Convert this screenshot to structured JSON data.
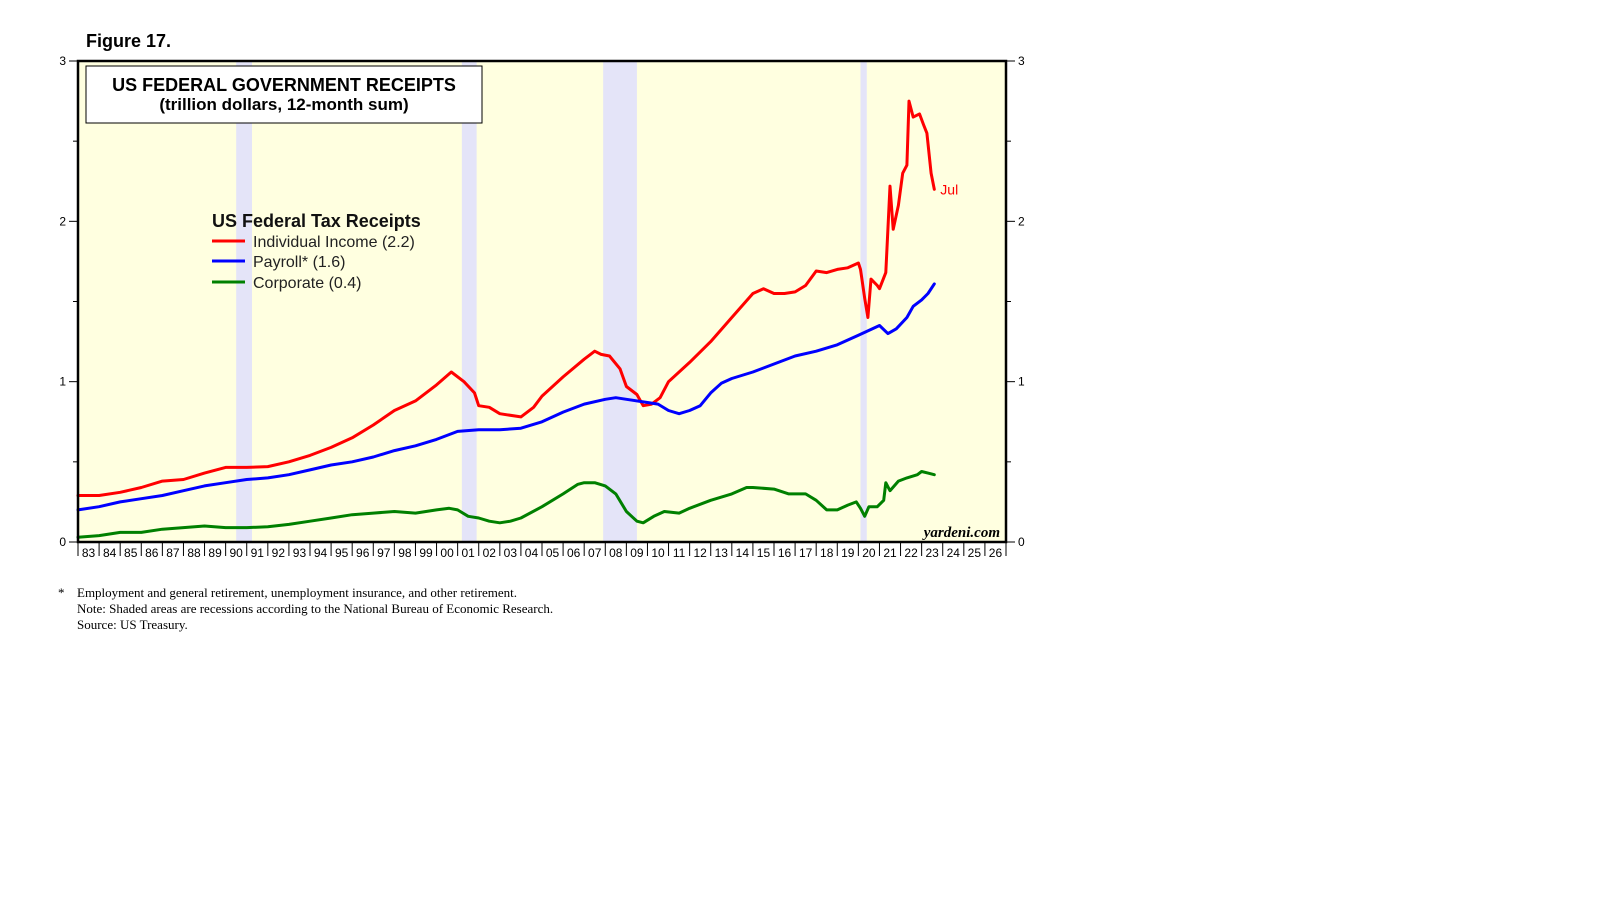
{
  "figure_label": "Figure 17.",
  "watermark": "yardeni.com",
  "notes": {
    "asterisk": "*",
    "line1": "Employment and general retirement, unemployment insurance, and other retirement.",
    "line2": "Note: Shaded areas are recessions according to the National Bureau of Economic Research.",
    "line3": "Source: US Treasury."
  },
  "colors": {
    "plot_bg": "#ffffe0",
    "recession": "#e4e4f8",
    "individual": "#ff0000",
    "payroll": "#0000ff",
    "corporate": "#008000"
  },
  "chart_data": {
    "type": "line",
    "title": "US FEDERAL GOVERNMENT RECEIPTS",
    "subtitle": "(trillion dollars, 12-month sum)",
    "legend_title": "US Federal Tax Receipts",
    "end_label": "Jul",
    "xlim": [
      1983,
      2027
    ],
    "ylim": [
      0,
      3
    ],
    "y_ticks": [
      "0",
      "1",
      "2",
      "3"
    ],
    "x_tick_labels": [
      "83",
      "84",
      "85",
      "86",
      "87",
      "88",
      "89",
      "90",
      "91",
      "92",
      "93",
      "94",
      "95",
      "96",
      "97",
      "98",
      "99",
      "00",
      "01",
      "02",
      "03",
      "04",
      "05",
      "06",
      "07",
      "08",
      "09",
      "10",
      "11",
      "12",
      "13",
      "14",
      "15",
      "16",
      "17",
      "18",
      "19",
      "20",
      "21",
      "22",
      "23",
      "24",
      "25",
      "26"
    ],
    "recessions": [
      [
        1990.5,
        1991.25
      ],
      [
        2001.2,
        2001.9
      ],
      [
        2007.9,
        2009.5
      ],
      [
        2020.1,
        2020.4
      ]
    ],
    "series": [
      {
        "name": "Individual Income (2.2)",
        "color_key": "individual",
        "points": [
          [
            1983,
            0.29
          ],
          [
            1984,
            0.29
          ],
          [
            1985,
            0.31
          ],
          [
            1986,
            0.34
          ],
          [
            1987,
            0.38
          ],
          [
            1988,
            0.39
          ],
          [
            1989,
            0.43
          ],
          [
            1990,
            0.465
          ],
          [
            1991,
            0.465
          ],
          [
            1992,
            0.47
          ],
          [
            1993,
            0.5
          ],
          [
            1994,
            0.54
          ],
          [
            1995,
            0.59
          ],
          [
            1996,
            0.65
          ],
          [
            1997,
            0.73
          ],
          [
            1998,
            0.82
          ],
          [
            1999,
            0.88
          ],
          [
            2000,
            0.98
          ],
          [
            2000.7,
            1.06
          ],
          [
            2001.3,
            1.0
          ],
          [
            2001.8,
            0.93
          ],
          [
            2002,
            0.85
          ],
          [
            2002.5,
            0.84
          ],
          [
            2003,
            0.8
          ],
          [
            2004,
            0.78
          ],
          [
            2004.6,
            0.84
          ],
          [
            2005,
            0.91
          ],
          [
            2006,
            1.03
          ],
          [
            2007,
            1.14
          ],
          [
            2007.5,
            1.19
          ],
          [
            2007.8,
            1.17
          ],
          [
            2008.2,
            1.16
          ],
          [
            2008.7,
            1.08
          ],
          [
            2009,
            0.97
          ],
          [
            2009.5,
            0.92
          ],
          [
            2009.8,
            0.85
          ],
          [
            2010.2,
            0.86
          ],
          [
            2010.6,
            0.9
          ],
          [
            2011,
            1.0
          ],
          [
            2012,
            1.12
          ],
          [
            2013,
            1.25
          ],
          [
            2014,
            1.4
          ],
          [
            2015,
            1.55
          ],
          [
            2015.5,
            1.58
          ],
          [
            2016,
            1.55
          ],
          [
            2016.5,
            1.55
          ],
          [
            2017,
            1.56
          ],
          [
            2017.5,
            1.6
          ],
          [
            2018,
            1.69
          ],
          [
            2018.5,
            1.68
          ],
          [
            2019,
            1.7
          ],
          [
            2019.5,
            1.71
          ],
          [
            2020,
            1.74
          ],
          [
            2020.1,
            1.7
          ],
          [
            2020.3,
            1.52
          ],
          [
            2020.45,
            1.4
          ],
          [
            2020.6,
            1.64
          ],
          [
            2020.9,
            1.6
          ],
          [
            2021,
            1.58
          ],
          [
            2021.3,
            1.68
          ],
          [
            2021.5,
            2.22
          ],
          [
            2021.65,
            1.95
          ],
          [
            2021.9,
            2.1
          ],
          [
            2022.1,
            2.3
          ],
          [
            2022.3,
            2.35
          ],
          [
            2022.4,
            2.75
          ],
          [
            2022.6,
            2.65
          ],
          [
            2022.9,
            2.67
          ],
          [
            2023.1,
            2.6
          ],
          [
            2023.25,
            2.55
          ],
          [
            2023.45,
            2.3
          ],
          [
            2023.6,
            2.2
          ]
        ]
      },
      {
        "name": "Payroll* (1.6)",
        "color_key": "payroll",
        "points": [
          [
            1983,
            0.2
          ],
          [
            1984,
            0.22
          ],
          [
            1985,
            0.25
          ],
          [
            1986,
            0.27
          ],
          [
            1987,
            0.29
          ],
          [
            1988,
            0.32
          ],
          [
            1989,
            0.35
          ],
          [
            1990,
            0.37
          ],
          [
            1991,
            0.39
          ],
          [
            1992,
            0.4
          ],
          [
            1993,
            0.42
          ],
          [
            1994,
            0.45
          ],
          [
            1995,
            0.48
          ],
          [
            1996,
            0.5
          ],
          [
            1997,
            0.53
          ],
          [
            1998,
            0.57
          ],
          [
            1999,
            0.6
          ],
          [
            2000,
            0.64
          ],
          [
            2001,
            0.69
          ],
          [
            2002,
            0.7
          ],
          [
            2003,
            0.7
          ],
          [
            2004,
            0.71
          ],
          [
            2005,
            0.75
          ],
          [
            2006,
            0.81
          ],
          [
            2007,
            0.86
          ],
          [
            2008,
            0.89
          ],
          [
            2008.5,
            0.9
          ],
          [
            2009,
            0.89
          ],
          [
            2010,
            0.87
          ],
          [
            2010.5,
            0.86
          ],
          [
            2011,
            0.82
          ],
          [
            2011.5,
            0.8
          ],
          [
            2012,
            0.82
          ],
          [
            2012.5,
            0.85
          ],
          [
            2013,
            0.93
          ],
          [
            2013.5,
            0.99
          ],
          [
            2014,
            1.02
          ],
          [
            2015,
            1.06
          ],
          [
            2016,
            1.11
          ],
          [
            2017,
            1.16
          ],
          [
            2018,
            1.19
          ],
          [
            2019,
            1.23
          ],
          [
            2020,
            1.29
          ],
          [
            2021,
            1.35
          ],
          [
            2021.4,
            1.3
          ],
          [
            2021.8,
            1.33
          ],
          [
            2022.3,
            1.4
          ],
          [
            2022.6,
            1.47
          ],
          [
            2023,
            1.51
          ],
          [
            2023.3,
            1.55
          ],
          [
            2023.6,
            1.61
          ]
        ]
      },
      {
        "name": "Corporate (0.4)",
        "color_key": "corporate",
        "points": [
          [
            1983,
            0.03
          ],
          [
            1984,
            0.04
          ],
          [
            1985,
            0.06
          ],
          [
            1986,
            0.06
          ],
          [
            1987,
            0.08
          ],
          [
            1988,
            0.09
          ],
          [
            1989,
            0.1
          ],
          [
            1990,
            0.09
          ],
          [
            1991,
            0.09
          ],
          [
            1992,
            0.095
          ],
          [
            1993,
            0.11
          ],
          [
            1994,
            0.13
          ],
          [
            1995,
            0.15
          ],
          [
            1996,
            0.17
          ],
          [
            1997,
            0.18
          ],
          [
            1998,
            0.19
          ],
          [
            1999,
            0.18
          ],
          [
            2000,
            0.2
          ],
          [
            2000.6,
            0.21
          ],
          [
            2001,
            0.2
          ],
          [
            2001.5,
            0.16
          ],
          [
            2002,
            0.15
          ],
          [
            2002.5,
            0.13
          ],
          [
            2003,
            0.12
          ],
          [
            2003.5,
            0.13
          ],
          [
            2004,
            0.15
          ],
          [
            2005,
            0.22
          ],
          [
            2006,
            0.3
          ],
          [
            2006.7,
            0.36
          ],
          [
            2007,
            0.37
          ],
          [
            2007.5,
            0.37
          ],
          [
            2008,
            0.35
          ],
          [
            2008.5,
            0.3
          ],
          [
            2009,
            0.19
          ],
          [
            2009.5,
            0.13
          ],
          [
            2009.8,
            0.12
          ],
          [
            2010.3,
            0.16
          ],
          [
            2010.8,
            0.19
          ],
          [
            2011.5,
            0.18
          ],
          [
            2012,
            0.21
          ],
          [
            2013,
            0.26
          ],
          [
            2014,
            0.3
          ],
          [
            2014.7,
            0.34
          ],
          [
            2015,
            0.34
          ],
          [
            2016,
            0.33
          ],
          [
            2016.7,
            0.3
          ],
          [
            2017,
            0.3
          ],
          [
            2017.5,
            0.3
          ],
          [
            2018,
            0.26
          ],
          [
            2018.5,
            0.2
          ],
          [
            2019,
            0.2
          ],
          [
            2019.5,
            0.23
          ],
          [
            2019.9,
            0.25
          ],
          [
            2020.1,
            0.21
          ],
          [
            2020.3,
            0.16
          ],
          [
            2020.5,
            0.22
          ],
          [
            2020.9,
            0.22
          ],
          [
            2021.2,
            0.26
          ],
          [
            2021.3,
            0.37
          ],
          [
            2021.5,
            0.32
          ],
          [
            2021.9,
            0.38
          ],
          [
            2022.3,
            0.4
          ],
          [
            2022.8,
            0.42
          ],
          [
            2023,
            0.44
          ],
          [
            2023.3,
            0.43
          ],
          [
            2023.6,
            0.42
          ]
        ]
      }
    ]
  }
}
